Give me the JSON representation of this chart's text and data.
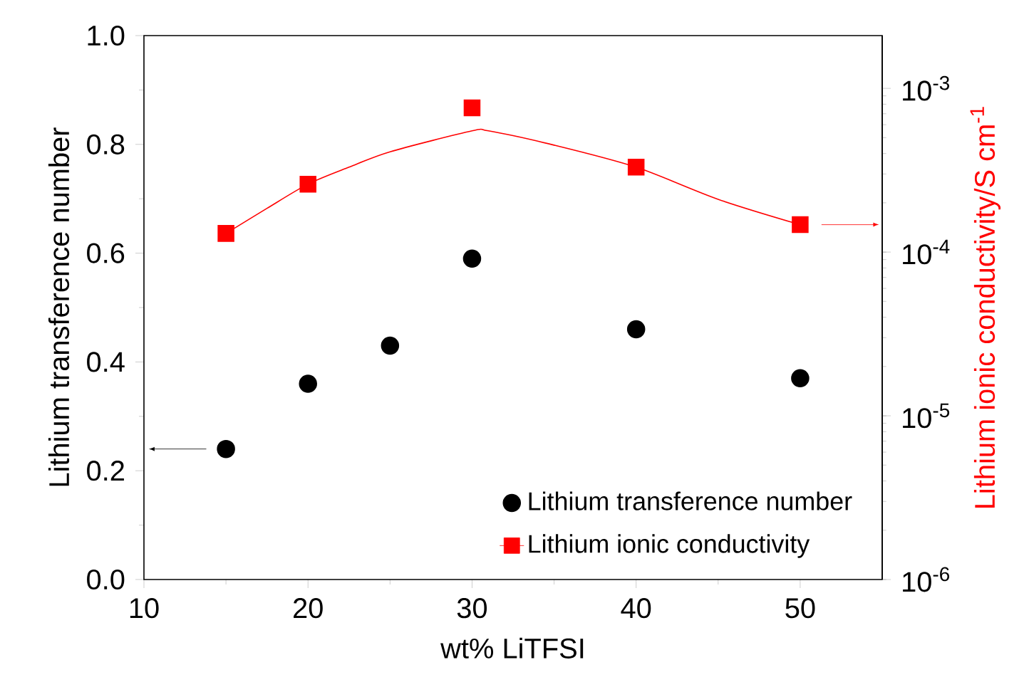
{
  "chart_data": {
    "type": "scatter",
    "xlabel": "wt% LiTFSI",
    "ylabel": "Lithium transference number",
    "y2label": "Lithium ionic conductivity/S cm$^{-1}$",
    "xlim": [
      10,
      55
    ],
    "xticks": [
      10,
      20,
      30,
      40,
      50
    ],
    "ylim": [
      0,
      1
    ],
    "yticks": [
      {
        "value": 0,
        "label": "0.0"
      },
      {
        "value": 0.2,
        "label": "0.2"
      },
      {
        "value": 0.4,
        "label": "0.4"
      },
      {
        "value": 0.6,
        "label": "0.6"
      },
      {
        "value": 0.8,
        "label": "0.8"
      },
      {
        "value": 1,
        "label": "1.0"
      }
    ],
    "log": "y2",
    "y2lim": [
      1e-06,
      0.0021
    ],
    "y2ticks": [
      {
        "value": 1e-06,
        "label": "10$^{-6}$"
      },
      {
        "value": 1e-05,
        "label": "10$^{-5}$"
      },
      {
        "value": 0.0001,
        "label": "10$^{-4}$"
      },
      {
        "value": 0.001,
        "label": "10$^{-3}$"
      }
    ],
    "legend": "bottom right",
    "series": [
      {
        "name": "Lithium transference number",
        "marker": "circle",
        "color": "#000000",
        "x": [
          15,
          20,
          25,
          30,
          40,
          50
        ],
        "values": [
          0.24,
          0.36,
          0.43,
          0.59,
          0.46,
          0.37
        ]
      },
      {
        "name": "Lithium ionic conductivity",
        "marker": "square",
        "axis": "y2",
        "color": "#ff0000",
        "x": [
          15,
          20,
          30,
          40,
          50
        ],
        "values": [
          0.00013,
          0.00026,
          0.00076,
          0.00033,
          0.000147
        ]
      },
      {
        "type": "line",
        "marker": "none",
        "axis": "y2",
        "color": "#ff0000",
        "x": [
          15,
          17.5,
          20,
          22.5,
          25,
          30,
          31,
          35,
          40,
          45,
          50
        ],
        "values": [
          0.00013,
          0.000185,
          0.00026,
          0.00033,
          0.00041,
          0.00055,
          0.00055,
          0.00045,
          0.00033,
          0.00021,
          0.000147
        ]
      }
    ]
  }
}
